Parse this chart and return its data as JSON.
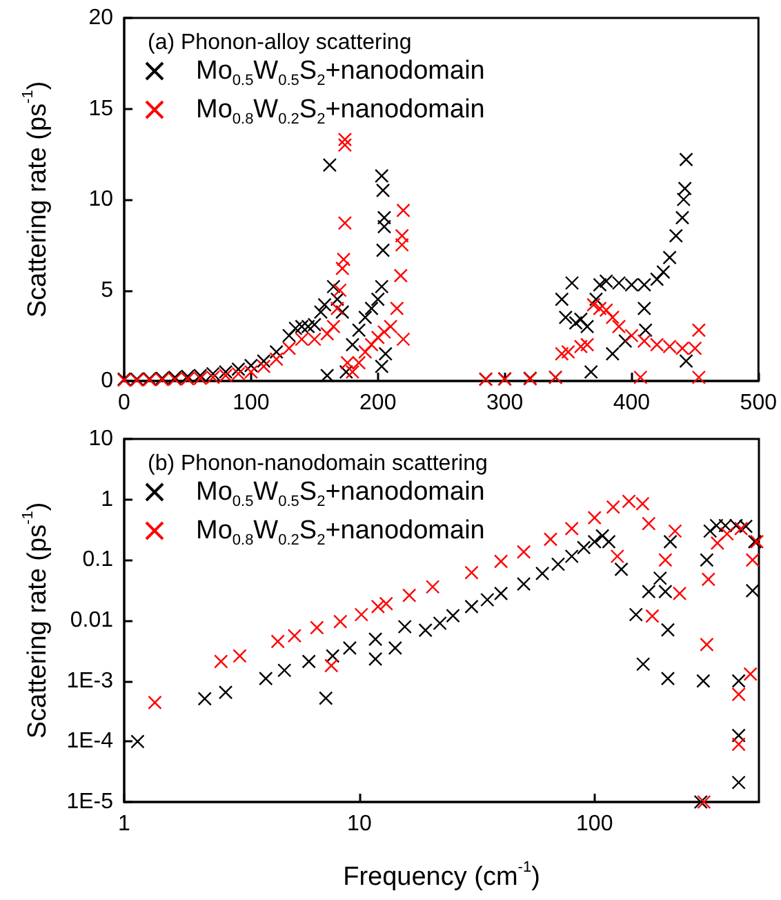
{
  "chart_data": [
    {
      "type": "scatter",
      "title": "(a) Phonon-alloy scattering",
      "ylabel": "Scattering rate (ps$^{-1}$)",
      "xlim": [
        0,
        500
      ],
      "xticks": [
        0,
        100,
        200,
        300,
        400,
        500
      ],
      "ylim": [
        0,
        20
      ],
      "yticks": [
        0,
        5,
        10,
        15,
        20
      ],
      "grid": false,
      "legend": "top left",
      "series": [
        {
          "name": "Mo$_{0.5}$W$_{0.5}$S$_{2}$+nanodomain",
          "color": "#000000",
          "marker": "cross",
          "x": [
            0,
            10,
            20,
            30,
            40,
            50,
            60,
            70,
            80,
            90,
            100,
            110,
            120,
            130,
            135,
            140,
            145,
            150,
            155,
            158,
            160,
            162,
            165,
            168,
            172,
            175,
            180,
            185,
            190,
            195,
            200,
            203,
            204,
            205,
            205,
            204,
            203,
            203,
            206,
            285,
            300,
            320,
            340,
            345,
            348,
            353,
            356,
            360,
            365,
            368,
            372,
            375,
            380,
            390,
            400,
            410,
            410,
            411,
            420,
            425,
            430,
            435,
            440,
            441,
            442,
            443,
            443,
            385,
            395
          ],
          "values": [
            0.1,
            0.1,
            0.12,
            0.15,
            0.2,
            0.25,
            0.3,
            0.4,
            0.5,
            0.65,
            0.85,
            1.1,
            1.6,
            2.5,
            2.9,
            3,
            3,
            3.1,
            3.8,
            4.2,
            0.3,
            11.9,
            5.2,
            4.5,
            3.8,
            0.5,
            2,
            2.8,
            3.5,
            4,
            4.5,
            11.3,
            10.5,
            9,
            8.5,
            7.2,
            5.2,
            0.8,
            1.5,
            0.1,
            0.12,
            0.15,
            0.2,
            4.5,
            3.5,
            5.4,
            3.2,
            3.4,
            3,
            0.5,
            4.5,
            5.3,
            5.5,
            5.4,
            5.3,
            5.3,
            4,
            2.8,
            5.6,
            6,
            6.8,
            8,
            9,
            10,
            10.6,
            12.2,
            1.1,
            1.5,
            2.2
          ]
        },
        {
          "name": "Mo$_{0.8}$W$_{0.2}$S$_{2}$+nanodomain",
          "color": "#ff0000",
          "marker": "cross",
          "x": [
            0,
            10,
            20,
            30,
            40,
            50,
            60,
            70,
            80,
            90,
            100,
            110,
            120,
            130,
            140,
            150,
            160,
            165,
            168,
            170,
            172,
            173,
            174,
            174,
            174,
            176,
            180,
            185,
            190,
            195,
            200,
            205,
            210,
            215,
            218,
            219,
            219,
            220,
            220,
            285,
            300,
            320,
            340,
            345,
            350,
            360,
            365,
            370,
            375,
            380,
            385,
            390,
            400,
            410,
            420,
            430,
            440,
            450,
            453,
            453,
            407
          ],
          "values": [
            0.05,
            0.05,
            0.07,
            0.08,
            0.1,
            0.12,
            0.15,
            0.2,
            0.3,
            0.4,
            0.5,
            0.8,
            1.2,
            1.8,
            2.3,
            2.3,
            2.6,
            3,
            4,
            5,
            6.2,
            6.7,
            8.7,
            13,
            13.3,
            1,
            0.5,
            1,
            1.6,
            2,
            2.4,
            2.7,
            3,
            4,
            5.8,
            7.5,
            8,
            9.4,
            2.3,
            0.1,
            0.1,
            0.12,
            0.2,
            1.5,
            1.6,
            1.9,
            2,
            4.2,
            4,
            3.9,
            3.5,
            3,
            2.5,
            2.2,
            2,
            1.9,
            1.8,
            1.8,
            2.8,
            0.2,
            0.2
          ]
        }
      ]
    },
    {
      "type": "scatter",
      "title": "(b) Phonon-nanodomain scattering",
      "xlabel": "Frequency (cm$^{-1}$)",
      "ylabel": "Scattering rate (ps$^{-1}$)",
      "log": "xy",
      "xlim": [
        1,
        500
      ],
      "xticks": [
        1,
        10,
        100
      ],
      "ylim": [
        1e-05,
        10
      ],
      "yticks": [
        {
          "value": 1e-05,
          "label": "1E-5"
        },
        {
          "value": 0.0001,
          "label": "1E-4"
        },
        {
          "value": 0.001,
          "label": "1E-3"
        },
        0.01,
        0.1,
        1,
        10
      ],
      "grid": false,
      "legend": "top left",
      "series": [
        {
          "name": "Mo$_{0.5}$W$_{0.5}$S$_{2}$+nanodomain",
          "color": "#000000",
          "marker": "cross",
          "x": [
            1.14,
            2.2,
            2.7,
            4.0,
            4.8,
            6.1,
            7.2,
            7.7,
            9.1,
            11.7,
            11.7,
            14.2,
            15.6,
            19.1,
            22,
            25,
            30,
            35,
            40,
            50,
            60,
            70,
            80,
            90,
            100,
            108,
            115,
            130,
            150,
            161,
            170,
            190,
            200,
            205,
            205,
            210,
            283,
            290,
            300,
            310,
            330,
            360,
            400,
            440,
            410,
            410,
            410,
            470,
            480
          ],
          "values": [
            0.0001,
            0.00051,
            0.00065,
            0.0011,
            0.0015,
            0.0021,
            0.00052,
            0.0026,
            0.0035,
            0.0023,
            0.0049,
            0.0035,
            0.0079,
            0.0069,
            0.009,
            0.012,
            0.017,
            0.022,
            0.028,
            0.04,
            0.06,
            0.085,
            0.115,
            0.16,
            0.2,
            0.25,
            0.2,
            0.07,
            0.0125,
            0.0019,
            0.03,
            0.05,
            0.03,
            0.0011,
            0.007,
            0.2,
            1e-05,
            0.001,
            0.1,
            0.3,
            0.37,
            0.37,
            0.37,
            0.36,
            2.1e-05,
            0.000126,
            0.001,
            0.031,
            0.2
          ]
        },
        {
          "name": "Mo$_{0.8}$W$_{0.2}$S$_{2}$+nanodomain",
          "color": "#ff0000",
          "marker": "cross",
          "x": [
            1.35,
            2.58,
            3.1,
            4.5,
            5.3,
            6.6,
            7.6,
            8.3,
            10.2,
            12,
            13,
            16.3,
            20.5,
            30,
            40,
            50,
            65,
            80,
            100,
            120,
            140,
            160,
            125,
            176,
            170,
            200,
            230,
            220,
            292,
            300,
            305,
            333,
            366,
            420,
            470,
            410,
            410,
            460,
            490
          ],
          "values": [
            0.00044,
            0.0021,
            0.0026,
            0.0045,
            0.0056,
            0.0076,
            0.0018,
            0.0096,
            0.0125,
            0.017,
            0.019,
            0.026,
            0.036,
            0.062,
            0.095,
            0.136,
            0.22,
            0.33,
            0.5,
            0.75,
            0.93,
            0.85,
            0.115,
            0.0118,
            0.4,
            0.1,
            0.028,
            0.3,
            1e-05,
            0.004,
            0.048,
            0.19,
            0.27,
            0.33,
            0.1,
            9e-05,
            0.0006,
            0.0013,
            0.2
          ]
        }
      ]
    }
  ]
}
